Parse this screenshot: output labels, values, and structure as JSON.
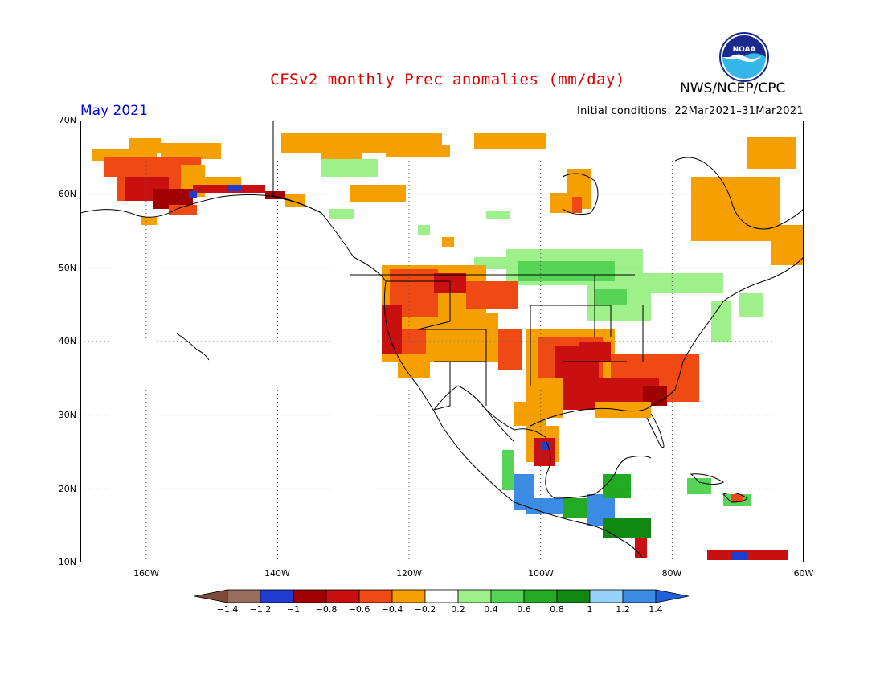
{
  "header": {
    "title": "CFSv2 monthly Prec anomalies (mm/day)",
    "org": "NWS/NCEP/CPC",
    "month": "May 2021",
    "initial_conditions": "Initial conditions: 22Mar2021–31Mar2021",
    "logo_text": "NOAA"
  },
  "map": {
    "lat_labels": [
      "70N",
      "60N",
      "50N",
      "40N",
      "30N",
      "20N",
      "10N"
    ],
    "lon_labels": [
      "160W",
      "140W",
      "120W",
      "100W",
      "80W",
      "60W"
    ],
    "grid": "dotted"
  },
  "colorbar": {
    "labels": [
      "−1.4",
      "−1.2",
      "−1",
      "−0.8",
      "−0.6",
      "−0.4",
      "−0.2",
      "0.2",
      "0.4",
      "0.6",
      "0.8",
      "1",
      "1.2",
      "1.4"
    ],
    "colors": [
      "#7f4a3a",
      "#9a6e5e",
      "#1e3cd0",
      "#a00000",
      "#c81010",
      "#f04a14",
      "#f5a000",
      "#ffffff",
      "#9ef08a",
      "#55d455",
      "#22aa22",
      "#118811",
      "#96d2fa",
      "#3c8ce6",
      "#2060dc"
    ]
  },
  "colors": {
    "title": "#e00000",
    "month": "#0000e0"
  }
}
